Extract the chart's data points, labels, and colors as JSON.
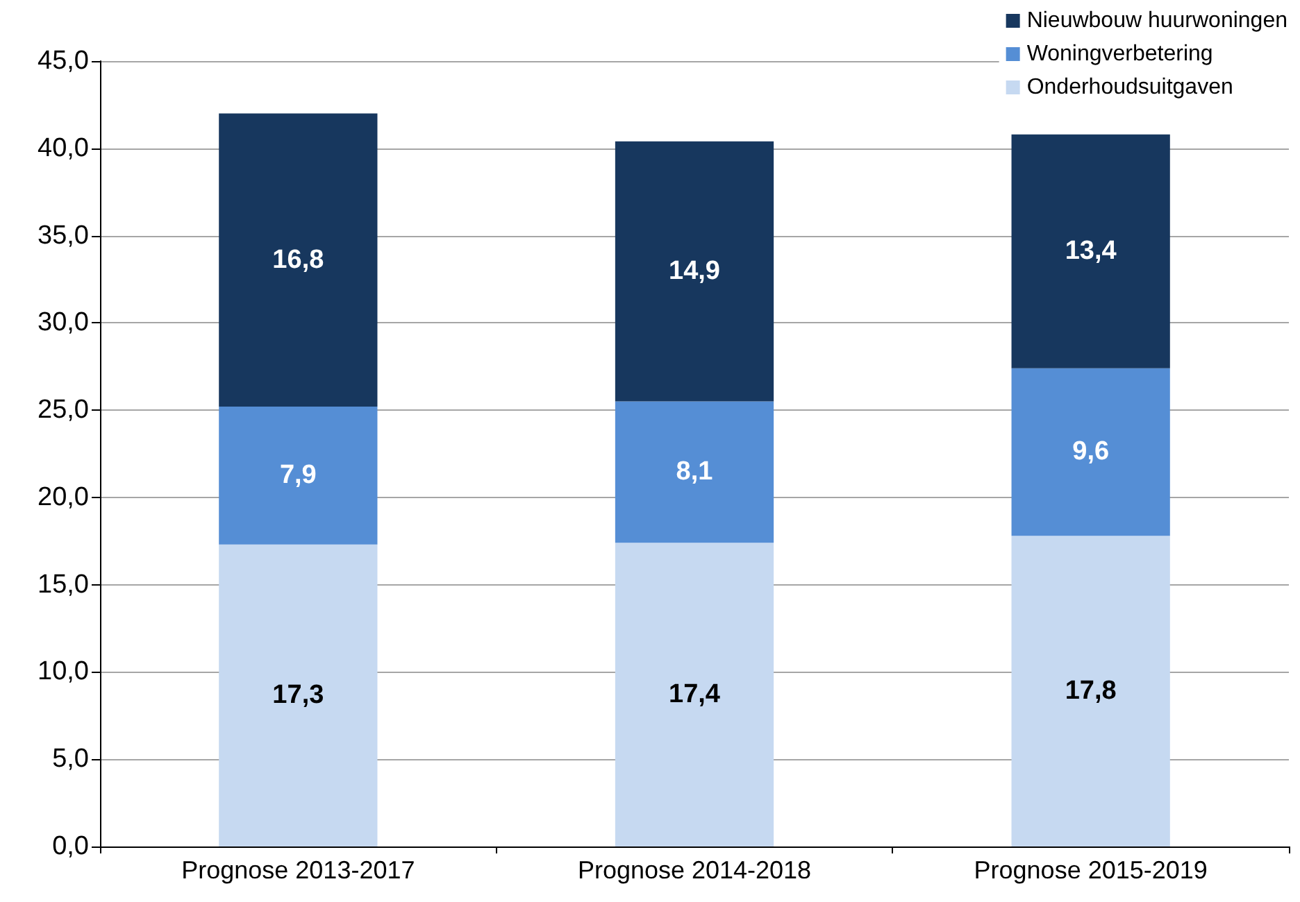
{
  "chart_data": {
    "type": "bar",
    "stacked": true,
    "categories": [
      "Prognose 2013-2017",
      "Prognose 2014-2018",
      "Prognose 2015-2019"
    ],
    "series": [
      {
        "name": "Onderhoudsuitgaven",
        "color": "#c6d9f1",
        "values": [
          17.3,
          17.4,
          17.8
        ],
        "value_labels": [
          "17,3",
          "17,4",
          "17,8"
        ]
      },
      {
        "name": "Woningverbetering",
        "color": "#558ed5",
        "values": [
          7.9,
          8.1,
          9.6
        ],
        "value_labels": [
          "7,9",
          "8,1",
          "9,6"
        ]
      },
      {
        "name": "Nieuwbouw huurwoningen",
        "color": "#17375e",
        "values": [
          16.8,
          14.9,
          13.4
        ],
        "value_labels": [
          "16,8",
          "14,9",
          "13,4"
        ]
      }
    ],
    "ylim": [
      0,
      45
    ],
    "yticks": [
      {
        "value": 0,
        "label": "0,0"
      },
      {
        "value": 5,
        "label": "5,0"
      },
      {
        "value": 10,
        "label": "10,0"
      },
      {
        "value": 15,
        "label": "15,0"
      },
      {
        "value": 20,
        "label": "20,0"
      },
      {
        "value": 25,
        "label": "25,0"
      },
      {
        "value": 30,
        "label": "30,0"
      },
      {
        "value": 35,
        "label": "35,0"
      },
      {
        "value": 40,
        "label": "40,0"
      },
      {
        "value": 45,
        "label": "45,0"
      }
    ],
    "grid": "y",
    "legend": "top right"
  }
}
